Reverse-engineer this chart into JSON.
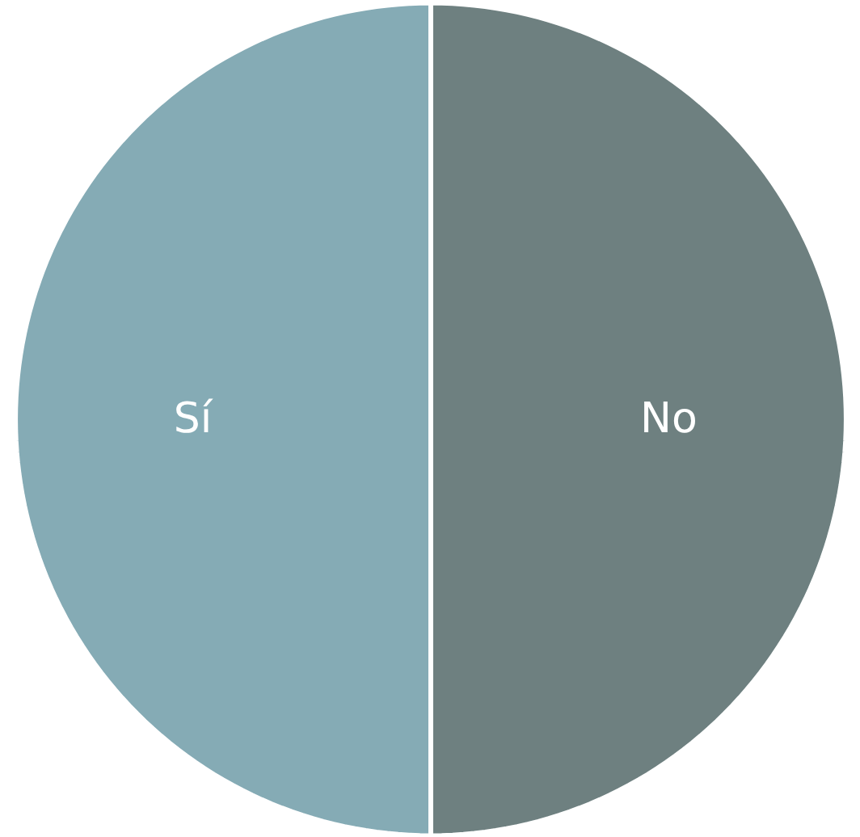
{
  "chart_data": {
    "type": "pie",
    "categories": [
      "Sí",
      "No"
    ],
    "values": [
      50,
      50
    ],
    "colors": [
      "#85abb5",
      "#6e8080"
    ]
  }
}
